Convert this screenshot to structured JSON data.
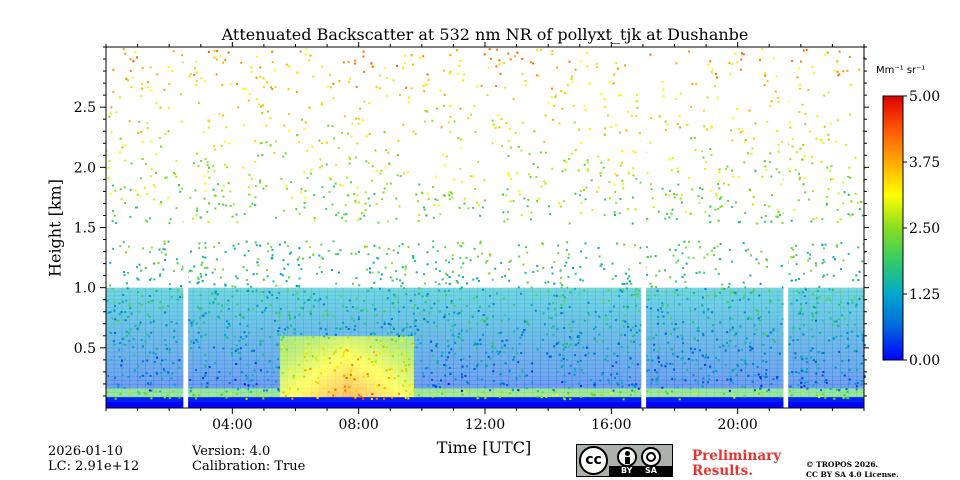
{
  "chart_data": {
    "type": "heatmap",
    "title": "Attenuated Backscatter at 532 nm NR of pollyxt_tjk at Dushanbe",
    "xlabel": "Time [UTC]",
    "ylabel": "Height [km]",
    "xlim_hours": [
      0,
      24
    ],
    "ylim_km": [
      0,
      3.0
    ],
    "x_ticks": [
      {
        "value": 4,
        "label": "04:00"
      },
      {
        "value": 8,
        "label": "08:00"
      },
      {
        "value": 12,
        "label": "12:00"
      },
      {
        "value": 16,
        "label": "16:00"
      },
      {
        "value": 20,
        "label": "20:00"
      }
    ],
    "y_ticks": [
      {
        "value": 0.5,
        "label": "0.5"
      },
      {
        "value": 1.0,
        "label": "1.0"
      },
      {
        "value": 1.5,
        "label": "1.5"
      },
      {
        "value": 2.0,
        "label": "2.0"
      },
      {
        "value": 2.5,
        "label": "2.5"
      }
    ],
    "colorbar": {
      "unit_label": "Mm⁻¹ sr⁻¹",
      "range": [
        0,
        5
      ],
      "ticks": [
        {
          "value": 0.0,
          "label": "0.00"
        },
        {
          "value": 1.25,
          "label": "1.25"
        },
        {
          "value": 2.5,
          "label": "2.50"
        },
        {
          "value": 3.75,
          "label": "3.75"
        },
        {
          "value": 5.0,
          "label": "5.00"
        }
      ],
      "colormap": [
        "#0000ff",
        "#0066dd",
        "#00aacc",
        "#33cc66",
        "#88dd22",
        "#ffff00",
        "#ffaa00",
        "#ff5500",
        "#dd0000"
      ]
    },
    "data_gaps_hours": [
      {
        "start": 2.45,
        "end": 2.6
      },
      {
        "start": 16.95,
        "end": 17.1
      },
      {
        "start": 21.45,
        "end": 21.6
      }
    ],
    "features": [
      {
        "name": "aerosol-layer",
        "start_hour": 5.5,
        "end_hour": 9.8,
        "top_km": 0.6,
        "peak_value": 4.5
      },
      {
        "name": "surface-layer",
        "start_hour": 0,
        "end_hour": 24,
        "top_km": 0.15,
        "peak_value": 3.0
      }
    ]
  },
  "footer": {
    "date": "2026-01-10",
    "lc": "LC: 2.91e+12",
    "version": "Version: 4.0",
    "calibration": "Calibration: True",
    "preliminary_line1": "Preliminary",
    "preliminary_line2": "Results.",
    "copyright_line1": "© TROPOS 2026.",
    "copyright_line2": "CC BY SA 4.0 License.",
    "license_badge": {
      "left": "cc",
      "by": "BY",
      "sa": "SA"
    }
  }
}
